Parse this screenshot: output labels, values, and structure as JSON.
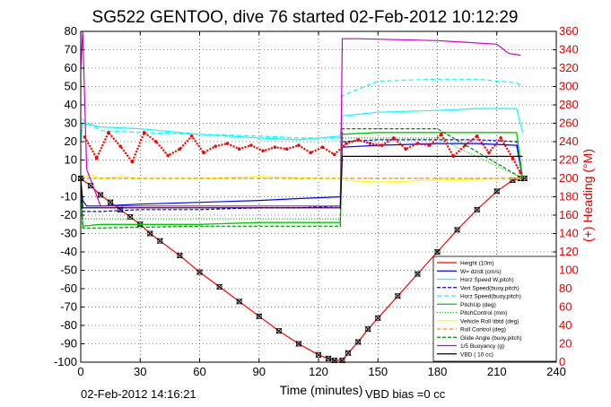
{
  "chart_data": {
    "type": "line",
    "title": "SG522 GENTOO, dive 76 started 02-Feb-2012 10:12:29",
    "xlabel": "Time (minutes)",
    "ylabel": "",
    "ylabel_right": "(+) Heading (°M)",
    "xlim": [
      0,
      240
    ],
    "ylim": [
      -100,
      80
    ],
    "ylim_right": [
      0,
      360
    ],
    "x_ticks": [
      0,
      30,
      60,
      90,
      120,
      150,
      180,
      210,
      240
    ],
    "y_ticks": [
      -100,
      -90,
      -80,
      -70,
      -60,
      -50,
      -40,
      -30,
      -20,
      -10,
      0,
      10,
      20,
      30,
      40,
      50,
      60,
      70,
      80
    ],
    "y_ticks_right": [
      0,
      20,
      40,
      60,
      80,
      100,
      120,
      140,
      160,
      180,
      200,
      220,
      240,
      260,
      280,
      300,
      320,
      340,
      360
    ],
    "grid": true,
    "legend_position": "bottom-right",
    "footer_left": "02-Feb-2012 14:16:21",
    "footer_right": "VBD bias =0 cc",
    "colors": {
      "height": "#ff0000",
      "w": "#0000ff",
      "horz_speed": "#00ffff",
      "pitch": "#00cc00",
      "roll": "#ffff00",
      "buoyancy": "#cc00cc",
      "vbd": "#000000",
      "heading": "#ff0000",
      "axis_right": "#e00000"
    },
    "series": [
      {
        "name": "Height (10m)",
        "x": [
          0,
          5,
          10,
          15,
          20,
          25,
          30,
          35,
          40,
          50,
          60,
          70,
          80,
          90,
          100,
          110,
          120,
          125,
          128,
          132,
          135,
          140,
          145,
          150,
          160,
          170,
          180,
          190,
          200,
          210,
          218,
          222,
          224
        ],
        "y": [
          0,
          -4,
          -9,
          -13,
          -17,
          -21,
          -25,
          -30,
          -34,
          -42,
          -51,
          -59,
          -67,
          -75,
          -83,
          -90,
          -96,
          -98,
          -99,
          -99,
          -95,
          -89,
          -82,
          -76,
          -64,
          -52,
          -40,
          -28,
          -17,
          -7,
          -1,
          0,
          0
        ]
      },
      {
        "name": "W= dz/dt (cm/s)",
        "x": [
          0,
          1,
          3,
          10,
          30,
          60,
          90,
          110,
          131,
          132,
          150,
          180,
          200,
          220,
          223
        ],
        "y": [
          0,
          -12,
          -15,
          -15,
          -14,
          -13,
          -12,
          -11,
          -10,
          17,
          18,
          19,
          19,
          18,
          0
        ]
      },
      {
        "name": "Horz Speed W,pitch)",
        "x": [
          0,
          1,
          10,
          30,
          60,
          90,
          110,
          131,
          132,
          150,
          180,
          200,
          220,
          223
        ],
        "y": [
          20,
          30,
          28,
          27,
          24,
          22,
          21,
          23,
          34,
          36,
          37,
          38,
          38,
          25
        ]
      },
      {
        "name": "Vert Speed(buoy,pitch)",
        "x": [
          0,
          1,
          10,
          30,
          60,
          90,
          110,
          131,
          132,
          150,
          180,
          200,
          220,
          223
        ],
        "y": [
          0,
          -18,
          -18,
          -17,
          -17,
          -16,
          -16,
          -15,
          20,
          21,
          21,
          21,
          20,
          0
        ]
      },
      {
        "name": "Horz Speed(buoy,pitch)",
        "x": [
          0,
          1,
          10,
          30,
          60,
          90,
          110,
          131,
          132,
          150,
          180,
          200,
          220,
          223
        ],
        "y": [
          20,
          32,
          26,
          25,
          24,
          23,
          22,
          22,
          45,
          53,
          54,
          54,
          52,
          50
        ]
      },
      {
        "name": "PitchUp (deg)",
        "x": [
          0,
          1,
          10,
          30,
          60,
          90,
          110,
          131,
          132,
          150,
          180,
          200,
          220,
          223
        ],
        "y": [
          0,
          -26,
          -25,
          -25,
          -25,
          -24,
          -24,
          -24,
          24,
          25,
          25,
          25,
          25,
          0
        ]
      },
      {
        "name": "PitchControl (mm)",
        "x": [
          0,
          1,
          10,
          60,
          110,
          131,
          132,
          180,
          223
        ],
        "y": [
          0,
          -22,
          -22,
          -22,
          -22,
          -22,
          22,
          22,
          0
        ]
      },
      {
        "name": "Vehicle Roll \\tbtd (deg)",
        "x": [
          0,
          5,
          10,
          20,
          30,
          60,
          90,
          120,
          131,
          132,
          150,
          180,
          223
        ],
        "y": [
          0,
          2,
          0,
          1,
          0,
          0,
          1,
          0,
          0,
          -1,
          -2,
          -1,
          0
        ]
      },
      {
        "name": "Roll Control (deg)",
        "x": [
          0,
          60,
          131,
          132,
          223
        ],
        "y": [
          0,
          0,
          0,
          0,
          0
        ]
      },
      {
        "name": "Glide Angle (buoy,pitch)",
        "x": [
          0,
          1,
          10,
          60,
          110,
          131,
          132,
          180,
          223
        ],
        "y": [
          0,
          -27,
          -27,
          -26,
          -26,
          -26,
          27,
          27,
          0
        ]
      },
      {
        "name": "1/5 Buoyancy (g)",
        "x": [
          0,
          1,
          3,
          10,
          60,
          131,
          132,
          140,
          180,
          210,
          216,
          222
        ],
        "y": [
          60,
          80,
          5,
          -15,
          -15,
          -15,
          76,
          76,
          75,
          73,
          68,
          67
        ]
      },
      {
        "name": "VBD ( 10 cc)",
        "x": [
          0,
          1,
          10,
          60,
          110,
          131,
          132,
          180,
          223
        ],
        "y": [
          0,
          -16,
          -16,
          -16,
          -16,
          -16,
          12,
          12,
          12
        ]
      }
    ],
    "heading_series": {
      "name": "Heading",
      "axis": "right",
      "x": [
        2,
        8,
        14,
        20,
        26,
        32,
        38,
        44,
        50,
        56,
        62,
        68,
        74,
        80,
        86,
        92,
        98,
        104,
        110,
        116,
        122,
        128,
        134,
        140,
        146,
        152,
        158,
        164,
        170,
        176,
        182,
        188,
        194,
        200,
        206,
        212,
        218,
        222
      ],
      "y": [
        245,
        222,
        250,
        235,
        218,
        250,
        240,
        225,
        232,
        246,
        228,
        235,
        238,
        232,
        236,
        230,
        234,
        232,
        236,
        228,
        234,
        226,
        238,
        242,
        238,
        236,
        244,
        232,
        238,
        236,
        248,
        224,
        236,
        246,
        228,
        244,
        222,
        206
      ]
    }
  }
}
